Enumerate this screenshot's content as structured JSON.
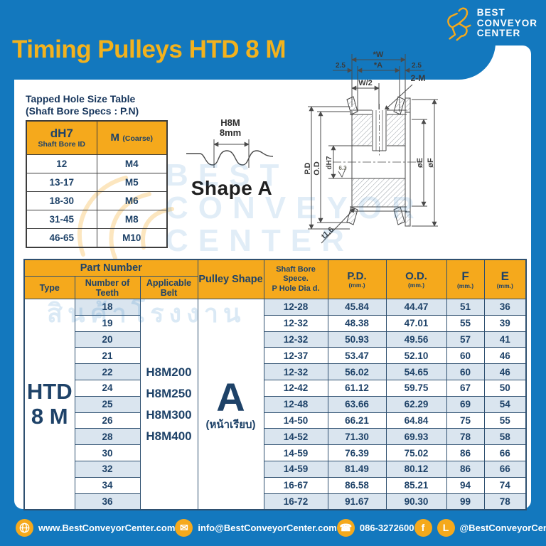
{
  "page": {
    "title": "Timing Pulleys HTD 8 M"
  },
  "logo": {
    "line1": "BEST",
    "line2": "CONVEYOR",
    "line3": "CENTER"
  },
  "tapped_hole_table": {
    "title_line1": "Tapped Hole Size Table",
    "title_line2": "(Shaft Bore Specs : P.N)",
    "col1_main": "dH7",
    "col1_sub": "Shaft Bore ID",
    "col2_main": "M",
    "col2_sub": "(Coarse)",
    "rows": [
      [
        "12",
        "M4"
      ],
      [
        "13-17",
        "M5"
      ],
      [
        "18-30",
        "M6"
      ],
      [
        "31-45",
        "M8"
      ],
      [
        "46-65",
        "M10"
      ]
    ]
  },
  "profile": {
    "h8m": "H8M",
    "pitch": "8mm",
    "shape": "Shape A"
  },
  "drawing": {
    "w": "*W",
    "a": "*A",
    "m_left": "2.5",
    "m_right": "2.5",
    "half": "W/2",
    "tapped": "2-M",
    "pd": "P.D",
    "od": "O.D",
    "bore": "dH7",
    "rough": "6.3",
    "e": "øE",
    "f": "øF",
    "t": "t1.6"
  },
  "main_table": {
    "headers": {
      "part_number": "Part Number",
      "type": "Type",
      "teeth": "Number of Teeth",
      "belt": "Applicable Belt",
      "pulley_shape": "Pulley Shape",
      "bore_line1": "Shaft Bore Spece.",
      "bore_line2": "P Hole Dia d.",
      "pd": "P.D.",
      "od": "O.D.",
      "f": "F",
      "e": "E",
      "unit": "(mm.)"
    },
    "type_line1": "HTD",
    "type_line2": "8 M",
    "belts": [
      "H8M200",
      "H8M250",
      "H8M300",
      "H8M400"
    ],
    "shape": "A",
    "shape_sub": "(หน้าเรียบ)",
    "rows": [
      [
        "18",
        "12-28",
        "45.84",
        "44.47",
        "51",
        "36"
      ],
      [
        "19",
        "12-32",
        "48.38",
        "47.01",
        "55",
        "39"
      ],
      [
        "20",
        "12-32",
        "50.93",
        "49.56",
        "57",
        "41"
      ],
      [
        "21",
        "12-37",
        "53.47",
        "52.10",
        "60",
        "46"
      ],
      [
        "22",
        "12-32",
        "56.02",
        "54.65",
        "60",
        "46"
      ],
      [
        "24",
        "12-42",
        "61.12",
        "59.75",
        "67",
        "50"
      ],
      [
        "25",
        "12-48",
        "63.66",
        "62.29",
        "69",
        "54"
      ],
      [
        "26",
        "14-50",
        "66.21",
        "64.84",
        "75",
        "55"
      ],
      [
        "28",
        "14-52",
        "71.30",
        "69.93",
        "78",
        "58"
      ],
      [
        "30",
        "14-59",
        "76.39",
        "75.02",
        "86",
        "66"
      ],
      [
        "32",
        "14-59",
        "81.49",
        "80.12",
        "86",
        "66"
      ],
      [
        "34",
        "16-67",
        "86.58",
        "85.21",
        "94",
        "74"
      ],
      [
        "36",
        "16-72",
        "91.67",
        "90.30",
        "99",
        "78"
      ]
    ]
  },
  "watermark": {
    "lines": [
      "BEST",
      "CONVEYOR",
      "CENTER"
    ],
    "thai": "สินค้าโรงงาน"
  },
  "footer": {
    "website": "www.BestConveyorCenter.com",
    "email": "info@BestConveyorCenter.com",
    "phone": "086-3272600",
    "social": "@BestConveyorCenter",
    "fb_glyph": "f",
    "line_glyph": "L"
  },
  "colors": {
    "page_blue": "#1378BE",
    "accent_yellow": "#F5A91C",
    "title_yellow": "#F3B21D",
    "navy_text": "#1E4268",
    "stripe_blue": "#DAE5EF"
  }
}
